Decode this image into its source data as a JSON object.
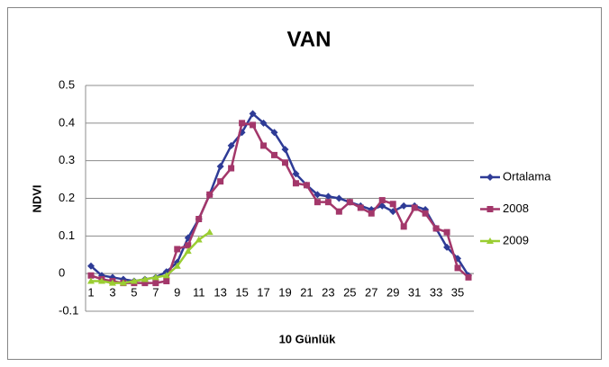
{
  "chart_data": {
    "type": "line",
    "title": "VAN",
    "x_label": "10 Günlük",
    "y_label": "NDVI",
    "categories": [
      1,
      null,
      3,
      null,
      5,
      null,
      7,
      null,
      9,
      null,
      11,
      null,
      13,
      null,
      15,
      null,
      17,
      null,
      19,
      null,
      21,
      null,
      23,
      null,
      25,
      null,
      27,
      null,
      29,
      null,
      31,
      null,
      33,
      null,
      35,
      null
    ],
    "series": [
      {
        "name": "Ortalama",
        "color": "#2e3b96",
        "marker": "diamond",
        "values": [
          0.02,
          -0.005,
          -0.01,
          -0.015,
          -0.02,
          -0.015,
          -0.01,
          0.005,
          0.03,
          0.095,
          0.145,
          0.21,
          0.285,
          0.34,
          0.375,
          0.425,
          0.4,
          0.375,
          0.33,
          0.265,
          0.235,
          0.21,
          0.205,
          0.2,
          0.19,
          0.18,
          0.17,
          0.18,
          0.165,
          0.18,
          0.18,
          0.17,
          0.12,
          0.07,
          0.04,
          -0.005
        ]
      },
      {
        "name": "2008",
        "color": "#a3376a",
        "marker": "square",
        "values": [
          -0.005,
          -0.015,
          -0.02,
          -0.025,
          -0.025,
          -0.025,
          -0.025,
          -0.02,
          0.065,
          0.075,
          0.145,
          0.21,
          0.245,
          0.28,
          0.4,
          0.395,
          0.34,
          0.315,
          0.295,
          0.24,
          0.235,
          0.19,
          0.19,
          0.165,
          0.19,
          0.175,
          0.16,
          0.195,
          0.185,
          0.125,
          0.175,
          0.16,
          0.12,
          0.11,
          0.015,
          -0.01
        ]
      },
      {
        "name": "2009",
        "color": "#9acd32",
        "marker": "triangle",
        "values": [
          -0.02,
          -0.02,
          -0.025,
          -0.025,
          -0.02,
          -0.015,
          -0.01,
          -0.005,
          0.02,
          0.06,
          0.09,
          0.11,
          null,
          null,
          null,
          null,
          null,
          null,
          null,
          null,
          null,
          null,
          null,
          null,
          null,
          null,
          null,
          null,
          null,
          null,
          null,
          null,
          null,
          null,
          null,
          null
        ]
      }
    ],
    "ylim": [
      -0.1,
      0.5
    ],
    "yticks": [
      -0.1,
      0,
      0.1,
      0.2,
      0.3,
      0.4,
      0.5
    ],
    "grid": true,
    "legend": "right"
  }
}
